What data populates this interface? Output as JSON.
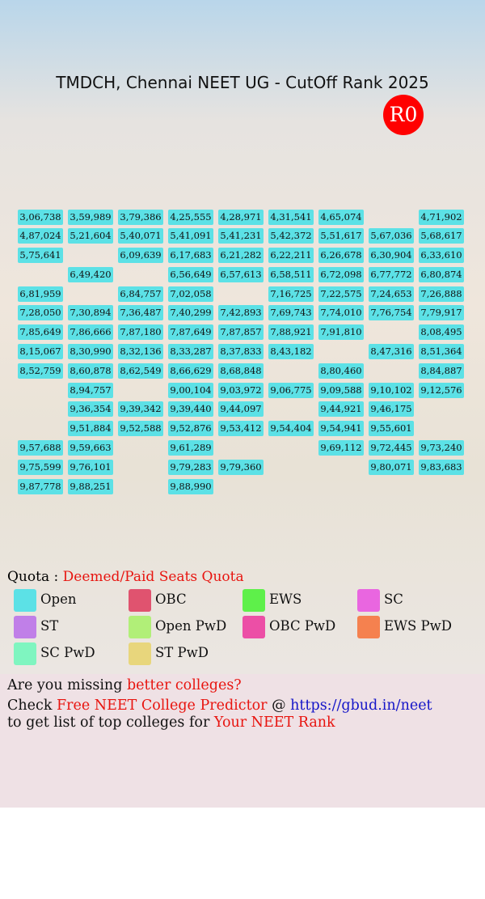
{
  "header": {
    "title": "TMDCH, Chennai NEET UG - CutOff Rank 2025",
    "round": "R0"
  },
  "table": {
    "rows": [
      [
        "3,06,738",
        "3,59,989",
        "3,79,386",
        "4,25,555",
        "4,28,971",
        "4,31,541",
        "4,65,074",
        null,
        "4,71,902"
      ],
      [
        "4,87,024",
        "5,21,604",
        "5,40,071",
        "5,41,091",
        "5,41,231",
        "5,42,372",
        "5,51,617",
        "5,67,036",
        "5,68,617"
      ],
      [
        "5,75,641",
        null,
        "6,09,639",
        "6,17,683",
        "6,21,282",
        "6,22,211",
        "6,26,678",
        "6,30,904",
        "6,33,610"
      ],
      [
        null,
        "6,49,420",
        null,
        "6,56,649",
        "6,57,613",
        "6,58,511",
        "6,72,098",
        "6,77,772",
        "6,80,874"
      ],
      [
        "6,81,959",
        null,
        "6,84,757",
        "7,02,058",
        null,
        "7,16,725",
        "7,22,575",
        "7,24,653",
        "7,26,888"
      ],
      [
        "7,28,050",
        "7,30,894",
        "7,36,487",
        "7,40,299",
        "7,42,893",
        "7,69,743",
        "7,74,010",
        "7,76,754",
        "7,79,917"
      ],
      [
        "7,85,649",
        "7,86,666",
        "7,87,180",
        "7,87,649",
        "7,87,857",
        "7,88,921",
        "7,91,810",
        null,
        "8,08,495"
      ],
      [
        "8,15,067",
        "8,30,990",
        "8,32,136",
        "8,33,287",
        "8,37,833",
        "8,43,182",
        null,
        "8,47,316",
        "8,51,364"
      ],
      [
        "8,52,759",
        "8,60,878",
        "8,62,549",
        "8,66,629",
        "8,68,848",
        null,
        "8,80,460",
        null,
        "8,84,887"
      ],
      [
        null,
        "8,94,757",
        null,
        "9,00,104",
        "9,03,972",
        "9,06,775",
        "9,09,588",
        "9,10,102",
        "9,12,576"
      ],
      [
        null,
        "9,36,354",
        "9,39,342",
        "9,39,440",
        "9,44,097",
        null,
        "9,44,921",
        "9,46,175",
        null
      ],
      [
        null,
        "9,51,884",
        "9,52,588",
        "9,52,876",
        "9,53,412",
        "9,54,404",
        "9,54,941",
        "9,55,601",
        null
      ],
      [
        "9,57,688",
        "9,59,663",
        null,
        "9,61,289",
        null,
        null,
        "9,69,112",
        "9,72,445",
        "9,73,240"
      ],
      [
        "9,75,599",
        "9,76,101",
        null,
        "9,79,283",
        "9,79,360",
        null,
        null,
        "9,80,071",
        "9,83,683"
      ],
      [
        "9,87,778",
        "9,88,251",
        null,
        "9,88,990",
        null,
        null,
        null,
        null,
        null
      ]
    ]
  },
  "quota": {
    "label": "Quota :",
    "value": "Deemed/Paid Seats Quota"
  },
  "legend": {
    "items": [
      {
        "name": "Open",
        "color": "#5ce1e6"
      },
      {
        "name": "OBC",
        "color": "#e0536f"
      },
      {
        "name": "EWS",
        "color": "#5ef04a"
      },
      {
        "name": "SC",
        "color": "#e966e0"
      },
      {
        "name": "ST",
        "color": "#c07fe8"
      },
      {
        "name": "Open PwD",
        "color": "#b1ef78"
      },
      {
        "name": "OBC PwD",
        "color": "#ec4fa6"
      },
      {
        "name": "EWS PwD",
        "color": "#f5814f"
      },
      {
        "name": "SC PwD",
        "color": "#7ff5c0"
      },
      {
        "name": "ST PwD",
        "color": "#e8d67c"
      }
    ]
  },
  "footer": {
    "line1": [
      "Are you missing ",
      "better colleges?"
    ],
    "line2": [
      "Check ",
      "Free NEET College Predictor",
      " @ ",
      "https://gbud.in/neet"
    ],
    "line3": [
      "to get list of top colleges for ",
      "Your NEET Rank"
    ]
  }
}
